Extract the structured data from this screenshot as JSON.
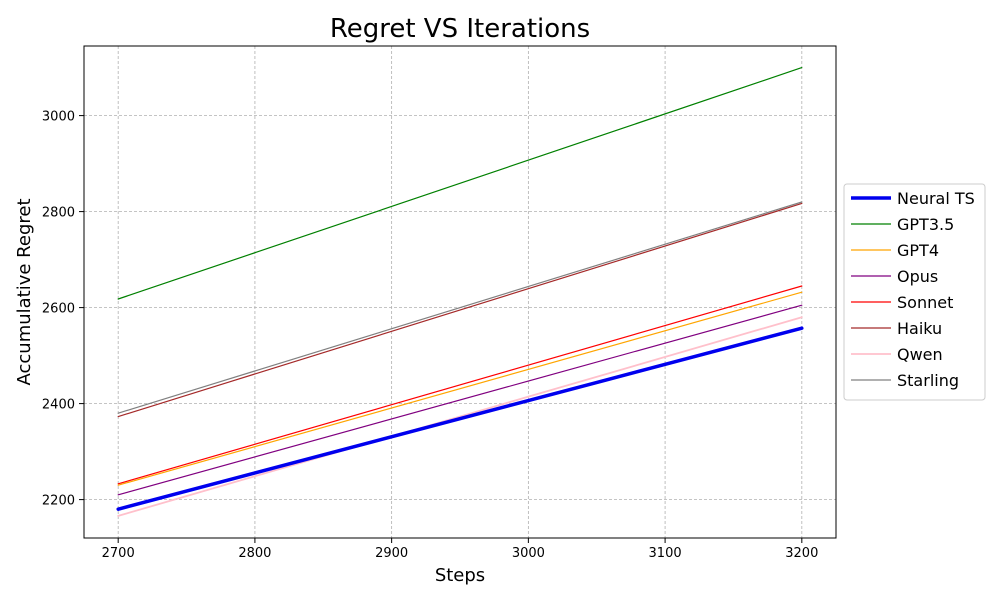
{
  "chart_data": {
    "type": "line",
    "title": "Regret VS Iterations",
    "xlabel": "Steps",
    "ylabel": "Accumulative Regret",
    "xlim": [
      2675,
      3225
    ],
    "ylim": [
      2120,
      3145
    ],
    "xticks": [
      2700,
      2800,
      2900,
      3000,
      3100,
      3200
    ],
    "yticks": [
      2200,
      2400,
      2600,
      2800,
      3000
    ],
    "grid": true,
    "legend_position": "right-outside",
    "series": [
      {
        "name": "Neural TS",
        "color": "#0000ee",
        "width": 3.5,
        "x": [
          2700,
          3200
        ],
        "y": [
          2180,
          2557
        ]
      },
      {
        "name": "GPT3.5",
        "color": "#008000",
        "width": 1.2,
        "x": [
          2700,
          3200
        ],
        "y": [
          2618,
          3100
        ]
      },
      {
        "name": "GPT4",
        "color": "#ffa500",
        "width": 1.2,
        "x": [
          2700,
          3200
        ],
        "y": [
          2230,
          2632
        ]
      },
      {
        "name": "Opus",
        "color": "#800080",
        "width": 1.2,
        "x": [
          2700,
          3200
        ],
        "y": [
          2210,
          2605
        ]
      },
      {
        "name": "Sonnet",
        "color": "#ff0000",
        "width": 1.2,
        "x": [
          2700,
          3200
        ],
        "y": [
          2233,
          2645
        ]
      },
      {
        "name": "Haiku",
        "color": "#a52a2a",
        "width": 1.2,
        "x": [
          2700,
          3200
        ],
        "y": [
          2373,
          2817
        ]
      },
      {
        "name": "Qwen",
        "color": "#ffc0cb",
        "width": 1.8,
        "x": [
          2700,
          3200
        ],
        "y": [
          2166,
          2580
        ]
      },
      {
        "name": "Starling",
        "color": "#808080",
        "width": 1.2,
        "x": [
          2700,
          3200
        ],
        "y": [
          2380,
          2820
        ]
      }
    ]
  }
}
